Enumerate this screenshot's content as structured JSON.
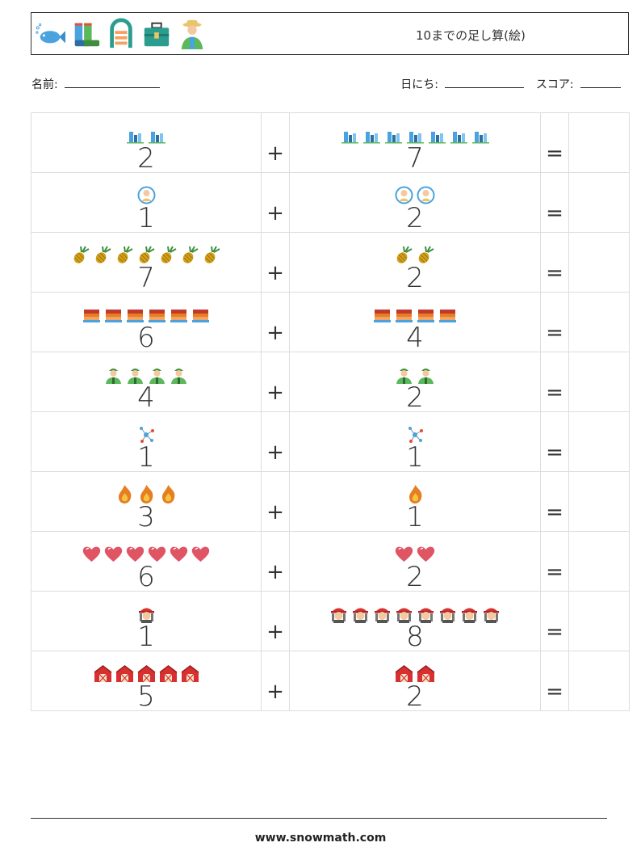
{
  "header": {
    "title": "10までの足し算(絵)",
    "icons": [
      "fish-icon",
      "boots-icon",
      "inflatable-boat-icon",
      "toolbox-icon",
      "farmer-icon"
    ]
  },
  "info": {
    "name_label": "名前:",
    "date_label": "日にち:",
    "score_label": "スコア:"
  },
  "problems": [
    {
      "a": "2",
      "a_icon": "city-icon",
      "op": "+",
      "b": "7",
      "b_icon": "city-icon",
      "eq": "="
    },
    {
      "a": "1",
      "a_icon": "face-badge-icon",
      "op": "+",
      "b": "2",
      "b_icon": "face-badge-icon",
      "eq": "="
    },
    {
      "a": "7",
      "a_icon": "pineapple-icon",
      "op": "+",
      "b": "2",
      "b_icon": "pineapple-icon",
      "eq": "="
    },
    {
      "a": "6",
      "a_icon": "cake-icon",
      "op": "+",
      "b": "4",
      "b_icon": "cake-icon",
      "eq": "="
    },
    {
      "a": "4",
      "a_icon": "soldier-icon",
      "op": "+",
      "b": "2",
      "b_icon": "soldier-icon",
      "eq": "="
    },
    {
      "a": "1",
      "a_icon": "molecule-icon",
      "op": "+",
      "b": "1",
      "b_icon": "molecule-icon",
      "eq": "="
    },
    {
      "a": "3",
      "a_icon": "fire-icon",
      "op": "+",
      "b": "1",
      "b_icon": "fire-icon",
      "eq": "="
    },
    {
      "a": "6",
      "a_icon": "heart-icon",
      "op": "+",
      "b": "2",
      "b_icon": "heart-icon",
      "eq": "="
    },
    {
      "a": "1",
      "a_icon": "firefighter-icon",
      "op": "+",
      "b": "8",
      "b_icon": "firefighter-icon",
      "eq": "="
    },
    {
      "a": "5",
      "a_icon": "barn-icon",
      "op": "+",
      "b": "2",
      "b_icon": "barn-icon",
      "eq": "="
    }
  ],
  "footer": {
    "url": "www.snowmath.com"
  }
}
